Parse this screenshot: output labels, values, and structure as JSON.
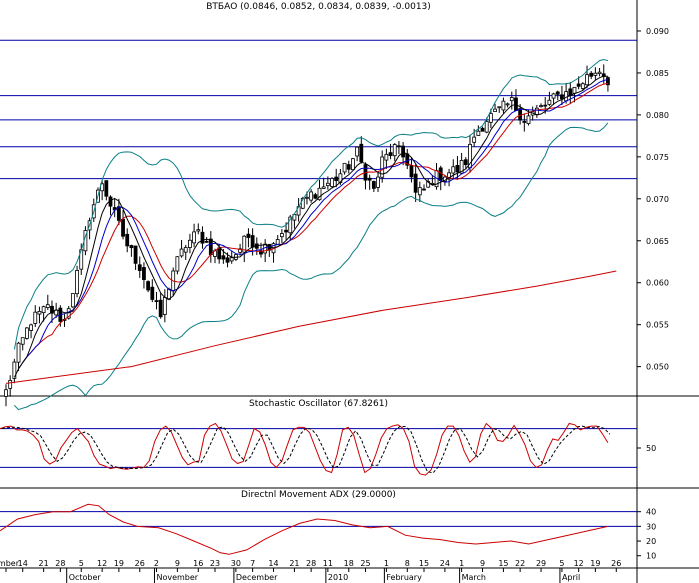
{
  "chart_data": [
    {
      "type": "candlestick",
      "title": "ВТБАО (0.0846, 0.0852, 0.0834, 0.0839, -0.0013)",
      "ylim": [
        0.0465,
        0.0925
      ],
      "y_ticks": [
        0.05,
        0.055,
        0.06,
        0.065,
        0.07,
        0.075,
        0.08,
        0.085,
        0.09
      ],
      "y_tick_labels": [
        "0.050",
        "0.055",
        "0.060",
        "0.065",
        "0.070",
        "0.075",
        "0.080",
        "0.085",
        "0.090"
      ],
      "horizontal_levels": [
        0.0889,
        0.0823,
        0.0794,
        0.0762,
        0.0724
      ],
      "colors": {
        "up": "#ffffff",
        "down": "#000000",
        "bollinger": "#0b7f87",
        "ma_red": "#cc0000",
        "ma_blue": "#0000cc",
        "ma_black": "#000000",
        "long_ma": "#cc0000",
        "level": "#0000aa"
      },
      "long_ma": [
        [
          0,
          0.048
        ],
        [
          30,
          0.05
        ],
        [
          50,
          0.0525
        ],
        [
          70,
          0.0548
        ],
        [
          90,
          0.0567
        ],
        [
          110,
          0.0582
        ],
        [
          127,
          0.0596
        ],
        [
          140,
          0.0608
        ],
        [
          146,
          0.0614
        ]
      ]
    },
    {
      "type": "line",
      "title": "Stochastic Oscillator (67.8261)",
      "ylim": [
        -12,
        112
      ],
      "y_ticks": [
        50
      ],
      "y_tick_labels": [
        "50"
      ],
      "horizontal_levels": [
        20,
        80
      ],
      "series": [
        {
          "values": [
            80,
            83,
            84,
            78,
            78,
            76,
            70,
            60,
            33,
            25,
            30,
            50,
            62,
            74,
            80,
            70,
            60,
            38,
            25,
            22,
            18,
            20,
            18,
            17,
            19,
            21,
            20,
            30,
            60,
            78,
            84,
            75,
            55,
            35,
            24,
            28,
            30,
            70,
            84,
            88,
            76,
            55,
            33,
            26,
            29,
            54,
            80,
            75,
            55,
            28,
            20,
            30,
            55,
            78,
            82,
            82,
            74,
            52,
            30,
            15,
            12,
            40,
            78,
            82,
            70,
            40,
            12,
            18,
            40,
            66,
            80,
            84,
            86,
            80,
            60,
            22,
            10,
            8,
            16,
            40,
            70,
            84,
            84,
            70,
            45,
            28,
            36,
            72,
            88,
            80,
            62,
            60,
            70,
            85,
            72,
            55,
            30,
            20,
            24,
            46,
            64,
            62,
            74,
            88,
            86,
            78,
            82,
            84,
            84,
            72,
            58
          ]
        }
      ]
    },
    {
      "type": "line",
      "title": "Directnl Movement ADX (29.0000)",
      "ylim": [
        3,
        50
      ],
      "y_ticks": [
        10,
        20,
        30,
        40
      ],
      "y_tick_labels": [
        "10",
        "20",
        "30",
        "40"
      ],
      "horizontal_levels": [
        30,
        40
      ],
      "series": [
        {
          "values": [
            [
              0,
              27
            ],
            [
              10,
              35
            ],
            [
              20,
              38
            ],
            [
              30,
              40
            ],
            [
              40,
              40
            ],
            [
              50,
              45
            ],
            [
              56,
              44
            ],
            [
              62,
              38
            ],
            [
              70,
              33
            ],
            [
              78,
              30
            ],
            [
              90,
              29
            ],
            [
              100,
              25
            ],
            [
              110,
              20
            ],
            [
              120,
              15
            ],
            [
              125,
              12
            ],
            [
              130,
              11
            ],
            [
              140,
              14
            ],
            [
              150,
              21
            ],
            [
              160,
              27
            ],
            [
              170,
              32
            ],
            [
              180,
              35
            ],
            [
              190,
              34
            ],
            [
              200,
              31
            ],
            [
              210,
              29
            ],
            [
              220,
              30
            ],
            [
              230,
              24
            ],
            [
              240,
              22
            ],
            [
              250,
              21
            ],
            [
              260,
              19
            ],
            [
              270,
              18
            ],
            [
              280,
              19
            ],
            [
              290,
              20
            ],
            [
              300,
              18
            ],
            [
              315,
              22
            ],
            [
              330,
              26
            ],
            [
              345,
              30
            ]
          ]
        }
      ]
    }
  ],
  "x_axis": {
    "ticks": [
      {
        "i": 0,
        "label": "ember"
      },
      {
        "i": 4,
        "label": "14"
      },
      {
        "i": 9,
        "label": "21"
      },
      {
        "i": 13,
        "label": "28"
      },
      {
        "i": 18,
        "label": "5"
      },
      {
        "i": 23,
        "label": "12"
      },
      {
        "i": 27,
        "label": "19"
      },
      {
        "i": 32,
        "label": "26"
      },
      {
        "i": 36,
        "label": "2"
      },
      {
        "i": 41,
        "label": "9"
      },
      {
        "i": 46,
        "label": "16"
      },
      {
        "i": 50,
        "label": "23"
      },
      {
        "i": 55,
        "label": "30"
      },
      {
        "i": 59,
        "label": "7"
      },
      {
        "i": 64,
        "label": "14"
      },
      {
        "i": 69,
        "label": "21"
      },
      {
        "i": 73,
        "label": "28"
      },
      {
        "i": 77,
        "label": "11"
      },
      {
        "i": 82,
        "label": "18"
      },
      {
        "i": 86,
        "label": "25"
      },
      {
        "i": 91,
        "label": "1"
      },
      {
        "i": 96,
        "label": "8"
      },
      {
        "i": 100,
        "label": "15"
      },
      {
        "i": 105,
        "label": "24"
      },
      {
        "i": 109,
        "label": "1"
      },
      {
        "i": 114,
        "label": "9"
      },
      {
        "i": 119,
        "label": "15"
      },
      {
        "i": 123,
        "label": "22"
      },
      {
        "i": 128,
        "label": "29"
      },
      {
        "i": 133,
        "label": "5"
      },
      {
        "i": 137,
        "label": "12"
      },
      {
        "i": 141,
        "label": "19"
      },
      {
        "i": 146,
        "label": "26"
      }
    ],
    "months": [
      {
        "i": 15,
        "label": "October"
      },
      {
        "i": 36,
        "label": "November"
      },
      {
        "i": 55,
        "label": "December"
      },
      {
        "i": 77,
        "label": "2010"
      },
      {
        "i": 91,
        "label": "February"
      },
      {
        "i": 109,
        "label": "March"
      },
      {
        "i": 133,
        "label": "April"
      }
    ]
  }
}
